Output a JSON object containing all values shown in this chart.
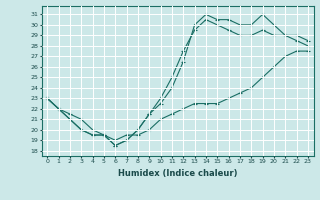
{
  "xlabel": "Humidex (Indice chaleur)",
  "ylabel": "",
  "background_color": "#cce8e8",
  "line_color": "#1a6e64",
  "xlim": [
    -0.5,
    23.5
  ],
  "ylim": [
    17.5,
    31.8
  ],
  "yticks": [
    18,
    19,
    20,
    21,
    22,
    23,
    24,
    25,
    26,
    27,
    28,
    29,
    30,
    31
  ],
  "xticks": [
    0,
    1,
    2,
    3,
    4,
    5,
    6,
    7,
    8,
    9,
    10,
    11,
    12,
    13,
    14,
    15,
    16,
    17,
    18,
    19,
    20,
    21,
    22,
    23
  ],
  "line1_x": [
    0,
    1,
    2,
    3,
    4,
    5,
    6,
    7,
    8,
    9,
    10,
    11,
    12,
    13,
    14,
    15,
    16,
    17,
    18,
    19,
    20,
    21,
    22,
    23
  ],
  "line1_y": [
    23,
    22,
    21.5,
    21,
    20,
    19.5,
    19,
    19.5,
    19.5,
    20,
    21,
    21.5,
    22,
    22.5,
    22.5,
    22.5,
    23,
    23.5,
    24,
    25,
    26,
    27,
    27.5,
    27.5
  ],
  "line2_x": [
    0,
    1,
    2,
    3,
    4,
    5,
    6,
    7,
    8,
    9,
    10,
    11,
    12,
    13,
    14,
    15,
    16,
    17,
    18,
    19,
    20,
    21,
    22,
    23
  ],
  "line2_y": [
    23,
    22,
    21,
    20,
    19.5,
    19.5,
    18.5,
    19,
    20,
    21.5,
    23,
    25,
    27.5,
    29.5,
    30.5,
    30,
    29.5,
    29,
    29,
    29.5,
    29,
    29,
    28.5,
    28
  ],
  "line3_x": [
    0,
    1,
    2,
    3,
    4,
    5,
    6,
    7,
    8,
    9,
    10,
    11,
    12,
    13,
    14,
    15,
    16,
    17,
    18,
    19,
    20,
    21,
    22,
    23
  ],
  "line3_y": [
    23,
    22,
    21,
    20,
    19.5,
    19.5,
    18.5,
    19,
    20,
    21.5,
    22.5,
    24,
    26.5,
    30,
    31,
    30.5,
    30.5,
    30,
    30,
    31,
    30,
    29,
    29,
    28.5
  ]
}
